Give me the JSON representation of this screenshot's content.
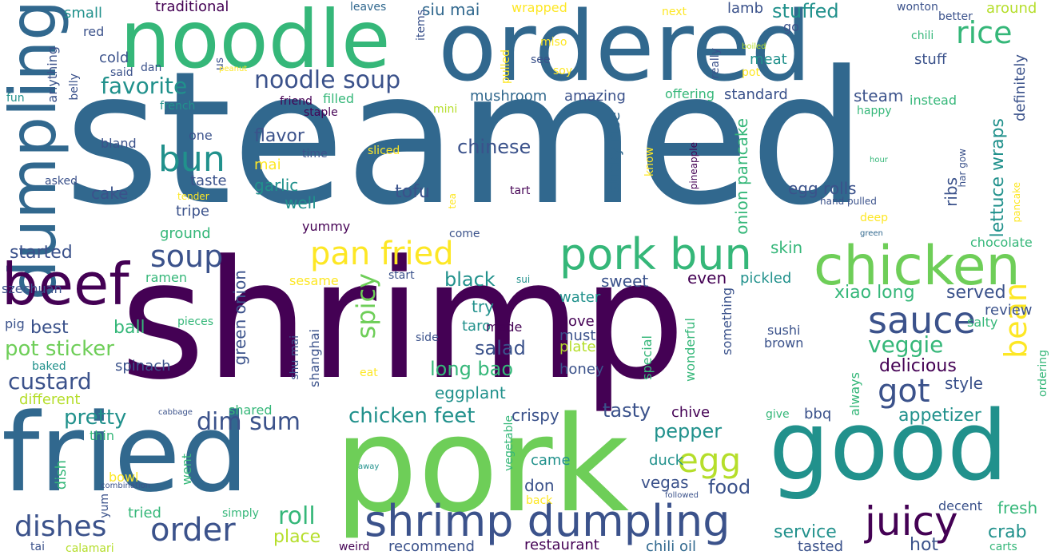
{
  "palette": {
    "dark_purple": "#440154",
    "indigo": "#3b528b",
    "blue_teal": "#31688e",
    "teal": "#21918c",
    "green_teal": "#35b779",
    "green": "#6ece58",
    "yellow_green": "#b5de2b",
    "yellow": "#fde725"
  },
  "words": [
    {
      "text": "steamed",
      "color": "#31688e"
    },
    {
      "text": "shrimp",
      "color": "#440154"
    },
    {
      "text": "pork",
      "color": "#6ece58"
    },
    {
      "text": "fried",
      "color": "#31688e"
    },
    {
      "text": "good",
      "color": "#21918c"
    },
    {
      "text": "ordered",
      "color": "#31688e"
    },
    {
      "text": "noodle",
      "color": "#35b779"
    },
    {
      "text": "dumpling",
      "color": "#31688e"
    },
    {
      "text": "chicken",
      "color": "#6ece58"
    },
    {
      "text": "beef",
      "color": "#440154"
    },
    {
      "text": "pork bun",
      "color": "#35b779"
    },
    {
      "text": "shrimp dumpling",
      "color": "#3b528b"
    },
    {
      "text": "juicy",
      "color": "#440154"
    },
    {
      "text": "order",
      "color": "#3b528b"
    },
    {
      "text": "sauce",
      "color": "#3b528b"
    },
    {
      "text": "pan fried",
      "color": "#fde725"
    },
    {
      "text": "dishes",
      "color": "#3b528b"
    },
    {
      "text": "rice",
      "color": "#35b779"
    },
    {
      "text": "bun",
      "color": "#21918c"
    },
    {
      "text": "soup",
      "color": "#3b528b"
    },
    {
      "text": "got",
      "color": "#3b528b"
    },
    {
      "text": "egg",
      "color": "#b5de2b"
    },
    {
      "text": "noodle soup",
      "color": "#3b528b"
    },
    {
      "text": "favorite",
      "color": "#21918c"
    },
    {
      "text": "dim sum",
      "color": "#3b528b"
    },
    {
      "text": "bean",
      "color": "#fde725"
    },
    {
      "text": "custard",
      "color": "#3b528b"
    },
    {
      "text": "roll",
      "color": "#35b779"
    },
    {
      "text": "pot sticker",
      "color": "#6ece58"
    },
    {
      "text": "chicken feet",
      "color": "#21918c"
    },
    {
      "text": "spicy",
      "color": "#6ece58"
    },
    {
      "text": "veggie",
      "color": "#35b779"
    },
    {
      "text": "pretty",
      "color": "#21918c"
    },
    {
      "text": "food",
      "color": "#3b528b"
    },
    {
      "text": "tasty",
      "color": "#3b528b"
    },
    {
      "text": "long bao",
      "color": "#35b779"
    },
    {
      "text": "delicious",
      "color": "#440154"
    },
    {
      "text": "stuffed",
      "color": "#21918c"
    },
    {
      "text": "chinese",
      "color": "#3b528b"
    },
    {
      "text": "served",
      "color": "#3b528b"
    },
    {
      "text": "xiao long",
      "color": "#35b779"
    },
    {
      "text": "lettuce wraps",
      "color": "#21918c"
    },
    {
      "text": "sticky rice",
      "color": "#31688e"
    },
    {
      "text": "onion pancake",
      "color": "#35b779"
    },
    {
      "text": "green onion",
      "color": "#3b528b"
    },
    {
      "text": "salad",
      "color": "#3b528b"
    },
    {
      "text": "black",
      "color": "#21918c"
    },
    {
      "text": "tofu",
      "color": "#3b528b"
    },
    {
      "text": "flavor",
      "color": "#3b528b"
    },
    {
      "text": "garlic",
      "color": "#21918c"
    },
    {
      "text": "pepper",
      "color": "#21918c"
    },
    {
      "text": "appetizer",
      "color": "#21918c"
    },
    {
      "text": "crab",
      "color": "#21918c"
    },
    {
      "text": "fresh",
      "color": "#35b779"
    },
    {
      "text": "service",
      "color": "#21918c"
    },
    {
      "text": "recommend",
      "color": "#3b528b"
    },
    {
      "text": "restaurant",
      "color": "#440154"
    },
    {
      "text": "chili oil",
      "color": "#31688e"
    },
    {
      "text": "tasted",
      "color": "#3b528b"
    },
    {
      "text": "hot",
      "color": "#3b528b"
    },
    {
      "text": "place",
      "color": "#b5de2b"
    },
    {
      "text": "siu mai",
      "color": "#31688e"
    },
    {
      "text": "mushroom",
      "color": "#31688e"
    },
    {
      "text": "amazing",
      "color": "#3b528b"
    },
    {
      "text": "standard",
      "color": "#3b528b"
    },
    {
      "text": "steam",
      "color": "#3b528b"
    },
    {
      "text": "definitely",
      "color": "#3b528b"
    },
    {
      "text": "egg rolls",
      "color": "#3b528b"
    },
    {
      "text": "ribs",
      "color": "#3b528b"
    },
    {
      "text": "best",
      "color": "#3b528b"
    },
    {
      "text": "ball",
      "color": "#35b779"
    },
    {
      "text": "started",
      "color": "#3b528b"
    },
    {
      "text": "crispy",
      "color": "#3b528b"
    },
    {
      "text": "eggplant",
      "color": "#21918c"
    },
    {
      "text": "honey",
      "color": "#3b528b"
    },
    {
      "text": "sweet",
      "color": "#3b528b"
    },
    {
      "text": "even",
      "color": "#440154"
    },
    {
      "text": "try",
      "color": "#21918c"
    },
    {
      "text": "love",
      "color": "#440154"
    },
    {
      "text": "must",
      "color": "#3b528b"
    },
    {
      "text": "plate",
      "color": "#b5de2b"
    },
    {
      "text": "style",
      "color": "#3b528b"
    },
    {
      "text": "review",
      "color": "#3b528b"
    },
    {
      "text": "skin",
      "color": "#35b779"
    },
    {
      "text": "pickled",
      "color": "#21918c"
    },
    {
      "text": "water",
      "color": "#21918c"
    },
    {
      "text": "taro",
      "color": "#21918c"
    },
    {
      "text": "made",
      "color": "#440154"
    },
    {
      "text": "came",
      "color": "#21918c"
    },
    {
      "text": "don",
      "color": "#3b528b"
    },
    {
      "text": "duck",
      "color": "#21918c"
    },
    {
      "text": "vegas",
      "color": "#3b528b"
    },
    {
      "text": "decent",
      "color": "#3b528b"
    },
    {
      "text": "bbq",
      "color": "#3b528b"
    },
    {
      "text": "chive",
      "color": "#440154"
    },
    {
      "text": "cake",
      "color": "#3b528b"
    },
    {
      "text": "taste",
      "color": "#3b528b"
    },
    {
      "text": "mai",
      "color": "#fde725"
    },
    {
      "text": "well",
      "color": "#21918c"
    },
    {
      "text": "yummy",
      "color": "#440154"
    },
    {
      "text": "ground",
      "color": "#35b779"
    },
    {
      "text": "tripe",
      "color": "#3b528b"
    },
    {
      "text": "ramen",
      "color": "#35b779"
    },
    {
      "text": "szechuan",
      "color": "#3b528b"
    },
    {
      "text": "spinach",
      "color": "#3b528b"
    },
    {
      "text": "different",
      "color": "#b5de2b"
    },
    {
      "text": "shared",
      "color": "#35b779"
    },
    {
      "text": "tried",
      "color": "#35b779"
    },
    {
      "text": "went",
      "color": "#35b779"
    },
    {
      "text": "dish",
      "color": "#35b779"
    },
    {
      "text": "bowl",
      "color": "#fde725"
    },
    {
      "text": "calamari",
      "color": "#b5de2b"
    },
    {
      "text": "tai",
      "color": "#3b528b"
    },
    {
      "text": "weird",
      "color": "#440154"
    },
    {
      "text": "small",
      "color": "#21918c"
    },
    {
      "text": "red",
      "color": "#3b528b"
    },
    {
      "text": "cold",
      "color": "#3b528b"
    },
    {
      "text": "traditional",
      "color": "#440154"
    },
    {
      "text": "leaves",
      "color": "#31688e"
    },
    {
      "text": "wrapped",
      "color": "#fde725"
    },
    {
      "text": "next",
      "color": "#fde725"
    },
    {
      "text": "lamb",
      "color": "#3b528b"
    },
    {
      "text": "wonton",
      "color": "#3b528b"
    },
    {
      "text": "around",
      "color": "#b5de2b"
    },
    {
      "text": "better",
      "color": "#3b528b"
    },
    {
      "text": "chili",
      "color": "#35b779"
    },
    {
      "text": "stuff",
      "color": "#3b528b"
    },
    {
      "text": "meat",
      "color": "#21918c"
    },
    {
      "text": "pot",
      "color": "#fde725"
    },
    {
      "text": "instead",
      "color": "#35b779"
    },
    {
      "text": "happy",
      "color": "#35b779"
    },
    {
      "text": "offering",
      "color": "#35b779"
    },
    {
      "text": "go",
      "color": "#3b528b"
    },
    {
      "text": "one",
      "color": "#3b528b"
    },
    {
      "text": "bland",
      "color": "#3b528b"
    },
    {
      "text": "time",
      "color": "#3b528b"
    },
    {
      "text": "sliced",
      "color": "#fde725"
    },
    {
      "text": "filled",
      "color": "#35b779"
    },
    {
      "text": "friend",
      "color": "#440154"
    },
    {
      "text": "staple",
      "color": "#440154"
    },
    {
      "text": "mini",
      "color": "#b5de2b"
    },
    {
      "text": "french",
      "color": "#21918c"
    },
    {
      "text": "fun",
      "color": "#21918c"
    },
    {
      "text": "us",
      "color": "#3b528b"
    },
    {
      "text": "said",
      "color": "#3b528b"
    },
    {
      "text": "dan",
      "color": "#3b528b"
    },
    {
      "text": "belly",
      "color": "#3b528b"
    },
    {
      "text": "anything",
      "color": "#3b528b"
    },
    {
      "text": "items",
      "color": "#3b528b"
    },
    {
      "text": "see",
      "color": "#3b528b"
    },
    {
      "text": "soy",
      "color": "#fde725"
    },
    {
      "text": "pulled",
      "color": "#fde725"
    },
    {
      "text": "miso",
      "color": "#fde725"
    },
    {
      "text": "really",
      "color": "#3b528b"
    },
    {
      "text": "boiled",
      "color": "#b5de2b"
    },
    {
      "text": "peanut",
      "color": "#fde725"
    },
    {
      "text": "asked",
      "color": "#3b528b"
    },
    {
      "text": "tender",
      "color": "#fde725"
    },
    {
      "text": "tea",
      "color": "#fde725"
    },
    {
      "text": "tart",
      "color": "#440154"
    },
    {
      "text": "know",
      "color": "#fde725"
    },
    {
      "text": "pineapple",
      "color": "#440154"
    },
    {
      "text": "hour",
      "color": "#35b779"
    },
    {
      "text": "har gow",
      "color": "#3b528b"
    },
    {
      "text": "hand pulled",
      "color": "#3b528b"
    },
    {
      "text": "pancake",
      "color": "#fde725"
    },
    {
      "text": "deep",
      "color": "#fde725"
    },
    {
      "text": "green",
      "color": "#31688e"
    },
    {
      "text": "chocolate",
      "color": "#35b779"
    },
    {
      "text": "come",
      "color": "#3b528b"
    },
    {
      "text": "start",
      "color": "#3b528b"
    },
    {
      "text": "sesame",
      "color": "#fde725"
    },
    {
      "text": "sui",
      "color": "#21918c"
    },
    {
      "text": "pig",
      "color": "#3b528b"
    },
    {
      "text": "pieces",
      "color": "#35b779"
    },
    {
      "text": "baked",
      "color": "#21918c"
    },
    {
      "text": "shanghai",
      "color": "#3b528b"
    },
    {
      "text": "shu mai",
      "color": "#3b528b"
    },
    {
      "text": "side",
      "color": "#3b528b"
    },
    {
      "text": "eat",
      "color": "#fde725"
    },
    {
      "text": "something",
      "color": "#3b528b"
    },
    {
      "text": "special",
      "color": "#35b779"
    },
    {
      "text": "wonderful",
      "color": "#35b779"
    },
    {
      "text": "sushi",
      "color": "#3b528b"
    },
    {
      "text": "brown",
      "color": "#3b528b"
    },
    {
      "text": "salty",
      "color": "#35b779"
    },
    {
      "text": "always",
      "color": "#35b779"
    },
    {
      "text": "ordering",
      "color": "#35b779"
    },
    {
      "text": "give",
      "color": "#35b779"
    },
    {
      "text": "vegetable",
      "color": "#35b779"
    },
    {
      "text": "cabbage",
      "color": "#3b528b"
    },
    {
      "text": "away",
      "color": "#21918c"
    },
    {
      "text": "combination",
      "color": "#3b528b"
    },
    {
      "text": "yum",
      "color": "#3b528b"
    },
    {
      "text": "thin",
      "color": "#35b779"
    },
    {
      "text": "back",
      "color": "#fde725"
    },
    {
      "text": "followed",
      "color": "#3b528b"
    },
    {
      "text": "simply",
      "color": "#35b779"
    },
    {
      "text": "carts",
      "color": "#35b779"
    }
  ]
}
